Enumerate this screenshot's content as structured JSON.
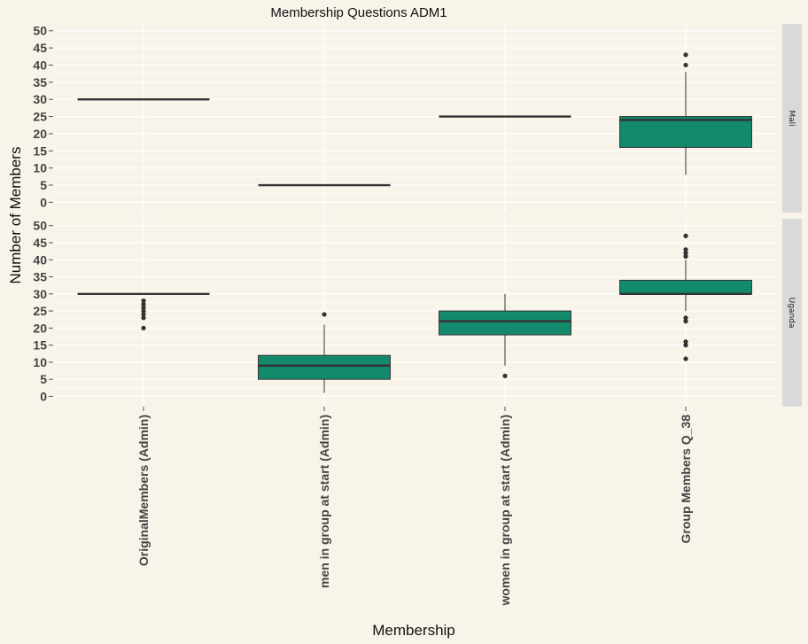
{
  "chart_data": {
    "type": "boxplot",
    "title": "Membership Questions ADM1",
    "xlabel": "Membership",
    "ylabel": "Number of Members",
    "ylim": [
      -3,
      52
    ],
    "yticks": [
      0,
      5,
      10,
      15,
      20,
      25,
      30,
      35,
      40,
      45,
      50
    ],
    "categories": [
      "OriginalMembers (Admin)",
      "men in group at start (Admin)",
      "women in group at start (Admin)",
      "Group Members Q_38"
    ],
    "fill_color": "#138a6c",
    "grid": true,
    "facets": [
      {
        "name": "Mali",
        "boxes": [
          {
            "category": "OriginalMembers (Admin)",
            "min": 30,
            "q1": 30,
            "median": 30,
            "q3": 30,
            "max": 30,
            "outliers": []
          },
          {
            "category": "men in group at start (Admin)",
            "min": 5,
            "q1": 5,
            "median": 5,
            "q3": 5,
            "max": 5,
            "outliers": []
          },
          {
            "category": "women in group at start (Admin)",
            "min": 25,
            "q1": 25,
            "median": 25,
            "q3": 25,
            "max": 25,
            "outliers": []
          },
          {
            "category": "Group Members Q_38",
            "min": 8,
            "q1": 16,
            "median": 24,
            "q3": 25,
            "max": 38,
            "outliers": [
              40,
              43
            ]
          }
        ]
      },
      {
        "name": "Uganda",
        "boxes": [
          {
            "category": "OriginalMembers (Admin)",
            "min": 30,
            "q1": 30,
            "median": 30,
            "q3": 30,
            "max": 30,
            "outliers": [
              20,
              23,
              24,
              25,
              26,
              27,
              28
            ]
          },
          {
            "category": "men in group at start (Admin)",
            "min": 1,
            "q1": 5,
            "median": 9,
            "q3": 12,
            "max": 21,
            "outliers": [
              24
            ]
          },
          {
            "category": "women in group at start (Admin)",
            "min": 9,
            "q1": 18,
            "median": 22,
            "q3": 25,
            "max": 30,
            "outliers": [
              6
            ]
          },
          {
            "category": "Group Members Q_38",
            "min": 25,
            "q1": 30,
            "median": 30,
            "q3": 34,
            "max": 40,
            "outliers": [
              11,
              15,
              16,
              22,
              23,
              41,
              42,
              43,
              47
            ]
          }
        ]
      }
    ]
  }
}
